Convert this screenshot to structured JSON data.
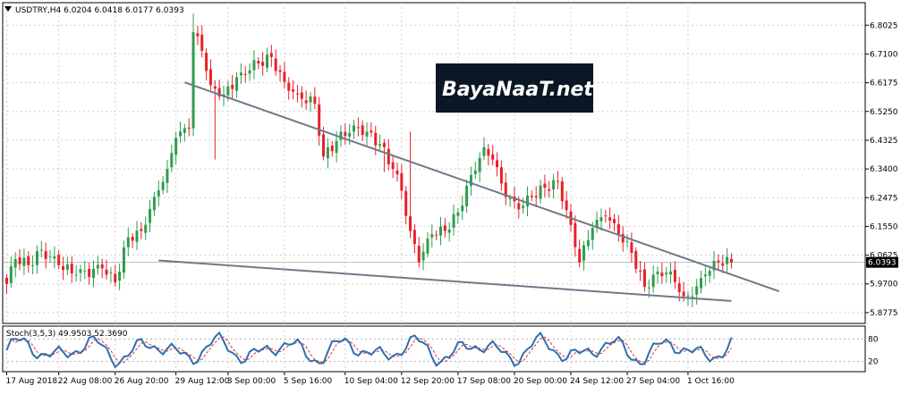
{
  "header": {
    "arrow_icon": "triangle-down-icon",
    "info": "USDTRY,H4  6.0204 6.0418 6.0177 6.0393"
  },
  "oscillator": {
    "label": "Stoch(3,5,3) 49.9503 52.3690",
    "levels": [
      "80",
      "20"
    ],
    "colors": {
      "main": "#2f6fb0",
      "signal": "#e03030"
    }
  },
  "watermark": {
    "text": "BayaNaaT.net"
  },
  "price_tag": "6.0393",
  "colors": {
    "bull": "#2e9e4e",
    "bear": "#e8202a",
    "trendline": "#6c7a89",
    "grid": "#d0d0d0",
    "watermark_bg": "#0b1726"
  },
  "chart_data": {
    "type": "candlestick",
    "symbol": "USDTRY",
    "timeframe": "H4",
    "y_ticks": [
      "6.8025",
      "6.7100",
      "6.6175",
      "6.5250",
      "6.4325",
      "6.3400",
      "6.2475",
      "6.1550",
      "6.0625",
      "5.9700",
      "5.8775"
    ],
    "ylim": [
      5.86,
      6.855
    ],
    "x_ticks": [
      "17 Aug 2018",
      "22 Aug 08:00",
      "26 Aug 20:00",
      "29 Aug 12:00",
      "3 Sep 00:00",
      "5 Sep 16:00",
      "10 Sep 04:00",
      "12 Sep 20:00",
      "17 Sep 08:00",
      "20 Sep 00:00",
      "24 Sep 12:00",
      "27 Sep 04:00",
      "1 Oct 16:00"
    ],
    "x_tick_bar_index": [
      0,
      12,
      25,
      39,
      51,
      64,
      78,
      91,
      104,
      117,
      130,
      143,
      157
    ],
    "n_bars": 168,
    "close_anchors": [
      [
        0,
        5.97
      ],
      [
        2,
        6.05
      ],
      [
        5,
        6.03
      ],
      [
        8,
        6.08
      ],
      [
        12,
        6.03
      ],
      [
        16,
        6.0
      ],
      [
        22,
        6.02
      ],
      [
        25,
        5.975
      ],
      [
        28,
        6.12
      ],
      [
        31,
        6.14
      ],
      [
        34,
        6.25
      ],
      [
        37,
        6.34
      ],
      [
        39,
        6.44
      ],
      [
        42,
        6.47
      ],
      [
        43,
        6.78
      ],
      [
        45,
        6.72
      ],
      [
        47,
        6.61
      ],
      [
        50,
        6.58
      ],
      [
        54,
        6.65
      ],
      [
        58,
        6.68
      ],
      [
        61,
        6.7
      ],
      [
        64,
        6.62
      ],
      [
        67,
        6.58
      ],
      [
        71,
        6.55
      ],
      [
        73,
        6.38
      ],
      [
        76,
        6.43
      ],
      [
        80,
        6.48
      ],
      [
        83,
        6.46
      ],
      [
        86,
        6.42
      ],
      [
        89,
        6.34
      ],
      [
        91,
        6.27
      ],
      [
        93,
        6.14
      ],
      [
        95,
        6.04
      ],
      [
        98,
        6.13
      ],
      [
        101,
        6.14
      ],
      [
        104,
        6.2
      ],
      [
        107,
        6.32
      ],
      [
        110,
        6.41
      ],
      [
        112,
        6.37
      ],
      [
        115,
        6.25
      ],
      [
        118,
        6.21
      ],
      [
        121,
        6.25
      ],
      [
        124,
        6.28
      ],
      [
        127,
        6.3
      ],
      [
        130,
        6.16
      ],
      [
        132,
        6.04
      ],
      [
        135,
        6.15
      ],
      [
        138,
        6.19
      ],
      [
        141,
        6.13
      ],
      [
        144,
        6.07
      ],
      [
        147,
        5.96
      ],
      [
        150,
        6.01
      ],
      [
        153,
        6.01
      ],
      [
        156,
        5.93
      ],
      [
        158,
        5.93
      ],
      [
        161,
        6.0
      ],
      [
        164,
        6.04
      ],
      [
        167,
        6.0393
      ]
    ],
    "spikes": [
      [
        48,
        6.37
      ],
      [
        93,
        6.46
      ],
      [
        87,
        6.33
      ],
      [
        158,
        5.895
      ],
      [
        43,
        6.84
      ]
    ],
    "trendlines": [
      {
        "name": "",
        "points": [
          [
            0,
            6.82
          ],
          [
            167,
            6.0
          ]
        ],
        "bar_range": [
          0,
          178
        ]
      },
      {
        "name": "",
        "points": [
          [
            0,
            6.08
          ],
          [
            167,
            5.915
          ]
        ],
        "bar_range": [
          0,
          167
        ]
      }
    ],
    "last_close": 6.0393
  }
}
